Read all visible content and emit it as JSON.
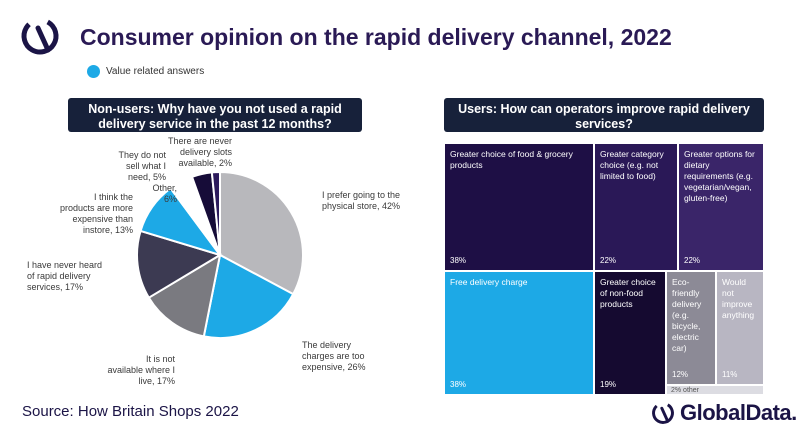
{
  "header": {
    "title": "Consumer opinion on the rapid delivery channel, 2022",
    "legend_label": "Value related answers",
    "legend_color": "#1da9e6"
  },
  "panels": {
    "left_heading": "Non-users: Why have you not used a rapid delivery service in the past 12 months?",
    "right_heading": "Users:  How can operators improve rapid delivery services?"
  },
  "chart_data": [
    {
      "type": "pie",
      "title": "Non-users: Why have you not used a rapid delivery service in the past 12 months?",
      "slices": [
        {
          "label": "I prefer going to the physical store, 42%",
          "value": 42,
          "color": "#b8b8bc"
        },
        {
          "label": "The delivery charges are too expensive, 26%",
          "value": 26,
          "color": "#1da9e6"
        },
        {
          "label": "It is not available where I live, 17%",
          "value": 17,
          "color": "#7a7a80"
        },
        {
          "label": "I have never heard of rapid delivery services, 17%",
          "value": 17,
          "color": "#3c3a52"
        },
        {
          "label": "I think the products are more expensive than instore, 13%",
          "value": 13,
          "color": "#1da9e6"
        },
        {
          "label": "Other, 6%",
          "value": 6,
          "color": "#ffffff"
        },
        {
          "label": "They do not sell what I need, 5%",
          "value": 5,
          "color": "#160c38"
        },
        {
          "label": "There are never delivery slots available, 2%",
          "value": 2,
          "color": "#2c1a5c"
        }
      ]
    },
    {
      "type": "treemap",
      "title": "Users:  How can operators improve rapid delivery services?",
      "tiles": [
        {
          "label": "Greater choice of food & grocery products",
          "pct": "38%",
          "value": 38,
          "color": "#1e0f45"
        },
        {
          "label": "Greater category choice (e.g. not limited to food)",
          "pct": "22%",
          "value": 22,
          "color": "#2a1857"
        },
        {
          "label": "Greater options for dietary requirements (e.g. vegetarian/vegan, gluten-free)",
          "pct": "22%",
          "value": 22,
          "color": "#3a2569"
        },
        {
          "label": "Free delivery charge",
          "pct": "38%",
          "value": 38,
          "color": "#1da9e6"
        },
        {
          "label": "Greater choice of non-food products",
          "pct": "19%",
          "value": 19,
          "color": "#150a30"
        },
        {
          "label": "Eco-friendly delivery (e.g. bicycle, electric car)",
          "pct": "12%",
          "value": 12,
          "color": "#8c8a96"
        },
        {
          "label": "Would not improve anything",
          "pct": "11%",
          "value": 11,
          "color": "#b8b6c2"
        },
        {
          "label": "other",
          "pct": "2%",
          "value": 2,
          "color": "#dcdce2"
        }
      ]
    }
  ],
  "footer": {
    "source": "Source: How Britain Shops 2022",
    "brand": "GlobalData."
  }
}
